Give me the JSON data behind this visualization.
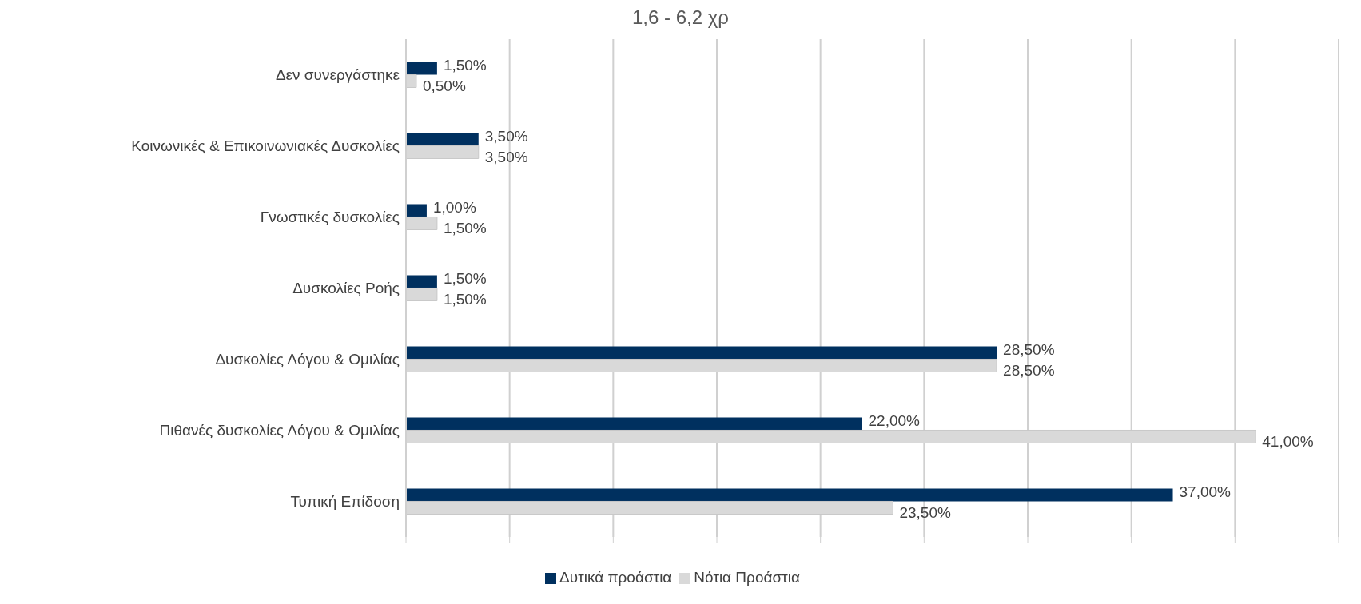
{
  "chart_data": {
    "type": "bar",
    "orientation": "horizontal",
    "title": "1,6 - 6,2 χρ",
    "categories": [
      "Δεν συνεργάστηκε",
      "Κοινωνικές & Επικοινωνιακές Δυσκολίες",
      "Γνωστικές δυσκολίες",
      "Δυσκολίες Ροής",
      "Δυσκολίες Λόγου & Ομιλίας",
      "Πιθανές δυσκολίες Λόγου & Ομιλίας",
      "Τυπική Επίδοση"
    ],
    "series": [
      {
        "name": "Δυτικά προάστια",
        "color": "#00305f",
        "values": [
          1.5,
          3.5,
          1,
          1.5,
          28.5,
          22,
          37
        ],
        "value_labels": [
          "1,50%",
          "3,50%",
          "1,00%",
          "1,50%",
          "28,50%",
          "22,00%",
          "37,00%"
        ]
      },
      {
        "name": "Νότια Προάστια",
        "color": "#d9d9d9",
        "values": [
          0.5,
          3.5,
          1.5,
          1.5,
          28.5,
          41,
          23.5
        ],
        "value_labels": [
          "0,50%",
          "3,50%",
          "1,50%",
          "1,50%",
          "28,50%",
          "41,00%",
          "23,50%"
        ]
      }
    ],
    "xlim": [
      0,
      45
    ],
    "tick_labels": "y",
    "grid": "x",
    "legend": "bottom"
  }
}
